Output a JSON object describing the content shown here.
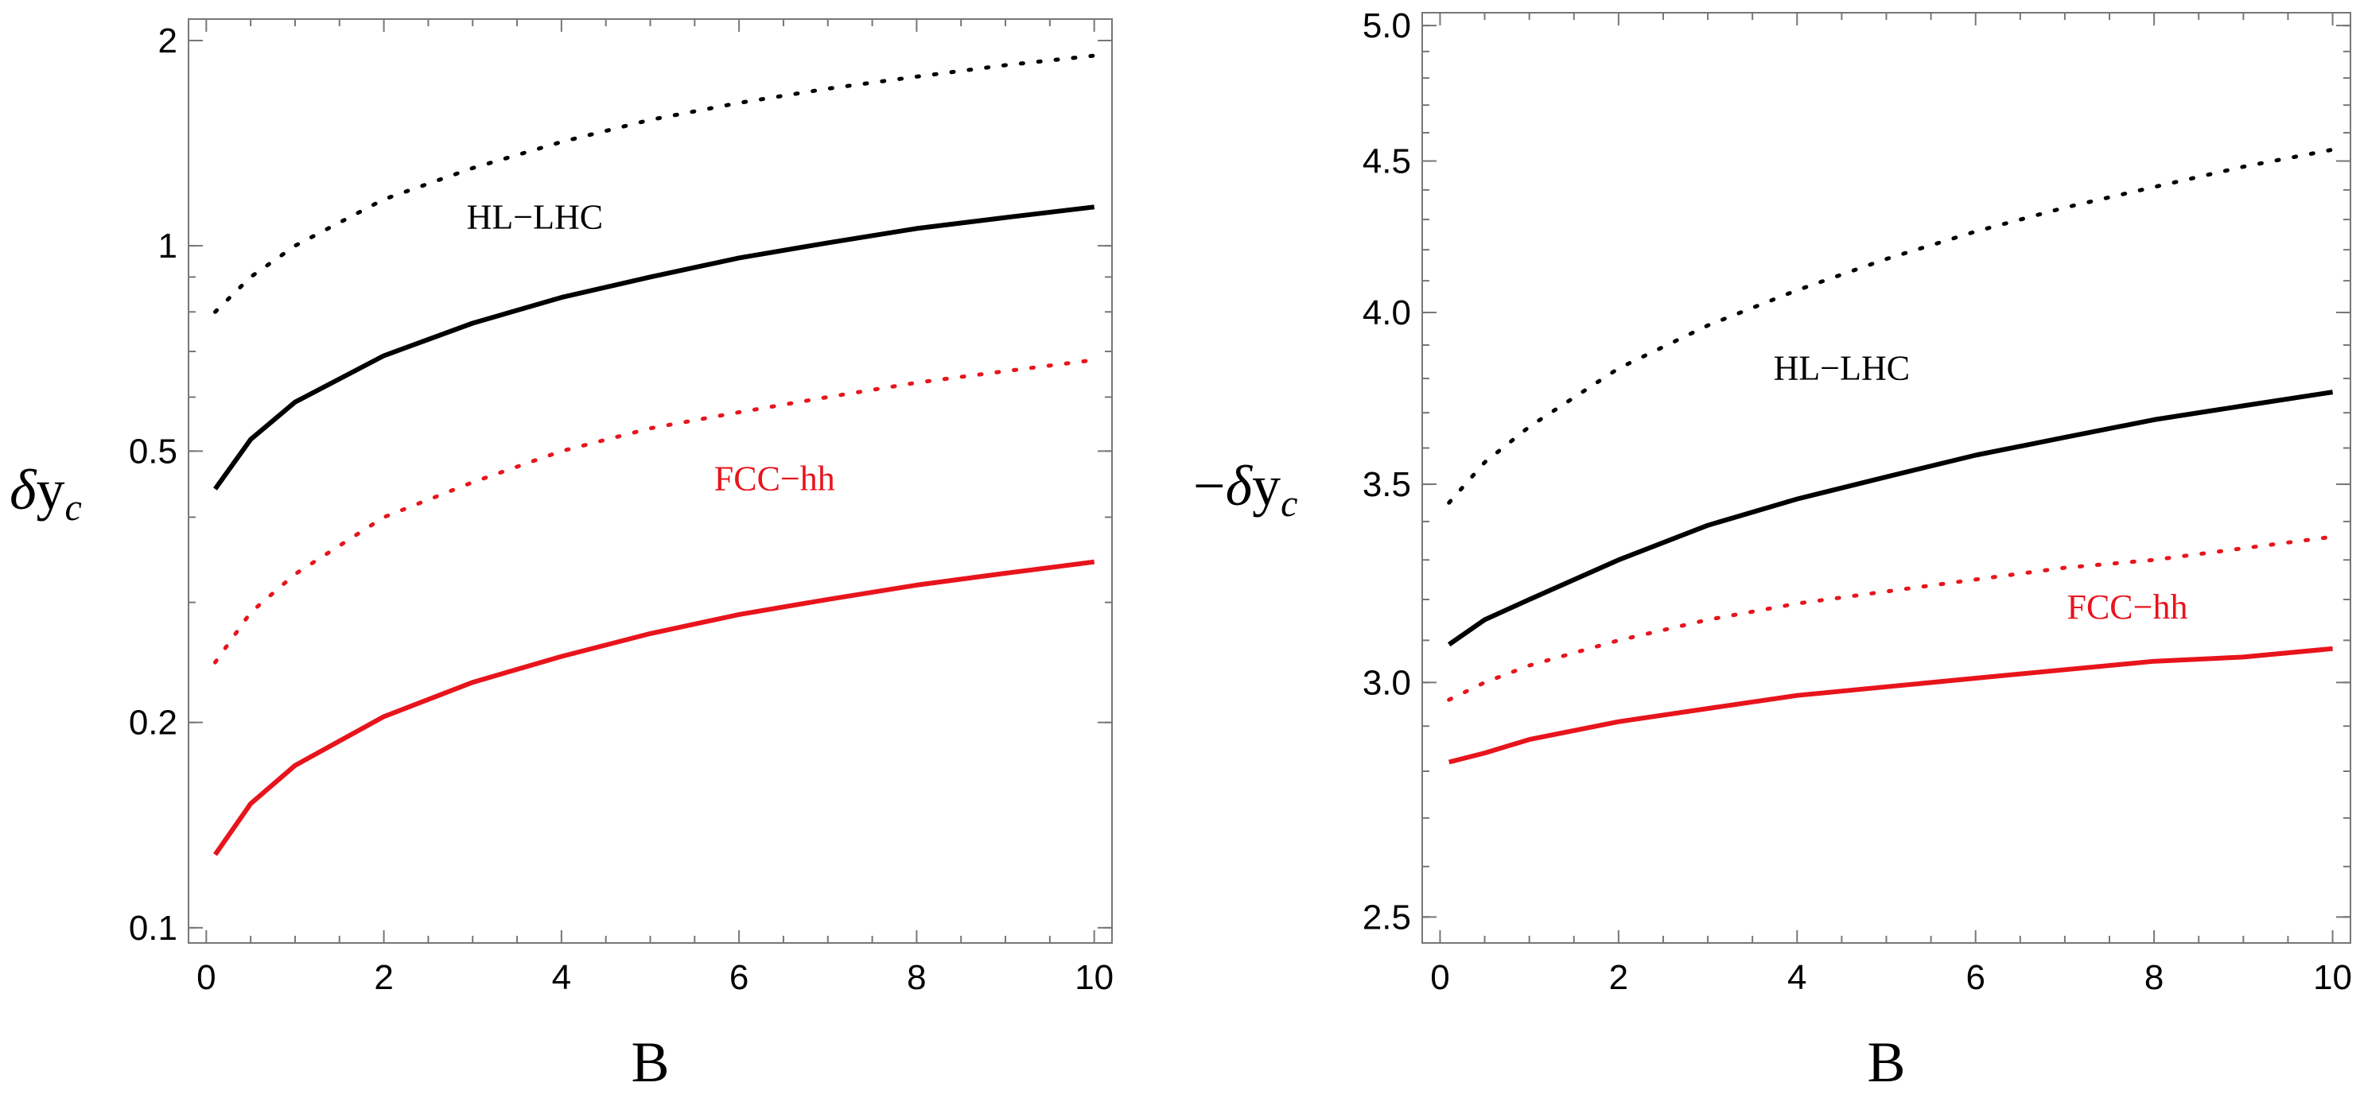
{
  "chart_data": [
    {
      "type": "line",
      "yscale": "log",
      "xlabel": "B",
      "ylabel_prefix": "",
      "ylabel_symbol": "δ",
      "ylabel_var": "y",
      "ylabel_sub": "c",
      "xlim": [
        -0.2,
        10.2
      ],
      "ylim": [
        0.095,
        2.15
      ],
      "xticks": [
        0,
        2,
        4,
        6,
        8,
        10
      ],
      "xtick_labels": [
        "0",
        "2",
        "4",
        "6",
        "8",
        "10"
      ],
      "yticks": [
        0.1,
        0.2,
        0.5,
        1,
        2
      ],
      "ytick_labels": [
        "0.1",
        "0.2",
        "0.5",
        "1",
        "2"
      ],
      "annotations": [
        {
          "text": "HL−LHC",
          "x": 3.7,
          "y": 1.1,
          "color": "#000000"
        },
        {
          "text": "FCC−hh",
          "x": 6.4,
          "y": 0.455,
          "color": "#e8141c"
        }
      ],
      "series": [
        {
          "name": "HL-LHC dotted",
          "color": "#000000",
          "style": "dotted",
          "x": [
            0.1,
            0.5,
            1,
            2,
            3,
            4,
            5,
            6,
            7,
            8,
            9,
            10
          ],
          "y": [
            0.8,
            0.9,
            1.0,
            1.17,
            1.3,
            1.42,
            1.53,
            1.62,
            1.7,
            1.77,
            1.84,
            1.9
          ]
        },
        {
          "name": "HL-LHC solid",
          "color": "#000000",
          "style": "solid",
          "x": [
            0.1,
            0.5,
            1,
            2,
            3,
            4,
            5,
            6,
            7,
            8,
            9,
            10
          ],
          "y": [
            0.44,
            0.52,
            0.59,
            0.69,
            0.77,
            0.84,
            0.9,
            0.96,
            1.01,
            1.06,
            1.1,
            1.14
          ]
        },
        {
          "name": "FCC-hh dotted",
          "color": "#e8141c",
          "style": "dotted",
          "x": [
            0.1,
            0.5,
            1,
            2,
            3,
            4,
            5,
            6,
            7,
            8,
            9,
            10
          ],
          "y": [
            0.245,
            0.29,
            0.33,
            0.4,
            0.45,
            0.5,
            0.54,
            0.57,
            0.6,
            0.63,
            0.655,
            0.68
          ]
        },
        {
          "name": "FCC-hh solid",
          "color": "#e8141c",
          "style": "solid",
          "x": [
            0.1,
            0.5,
            1,
            2,
            3,
            4,
            5,
            6,
            7,
            8,
            9,
            10
          ],
          "y": [
            0.128,
            0.152,
            0.173,
            0.204,
            0.229,
            0.25,
            0.27,
            0.288,
            0.303,
            0.318,
            0.331,
            0.344
          ]
        }
      ]
    },
    {
      "type": "line",
      "yscale": "log",
      "xlabel": "B",
      "ylabel_prefix": "−",
      "ylabel_symbol": "δ",
      "ylabel_var": "y",
      "ylabel_sub": "c",
      "xlim": [
        -0.2,
        10.2
      ],
      "ylim": [
        2.45,
        5.05
      ],
      "xticks": [
        0,
        2,
        4,
        6,
        8,
        10
      ],
      "xtick_labels": [
        "0",
        "2",
        "4",
        "6",
        "8",
        "10"
      ],
      "yticks": [
        2.5,
        3.0,
        3.5,
        4.0,
        4.5,
        5.0
      ],
      "ytick_labels": [
        "2.5",
        "3.0",
        "3.5",
        "4.0",
        "4.5",
        "5.0"
      ],
      "annotations": [
        {
          "text": "HL−LHC",
          "x": 4.5,
          "y": 3.83,
          "color": "#000000"
        },
        {
          "text": "FCC−hh",
          "x": 7.7,
          "y": 3.18,
          "color": "#e8141c"
        }
      ],
      "series": [
        {
          "name": "HL-LHC dotted",
          "color": "#000000",
          "style": "dotted",
          "x": [
            0.1,
            0.5,
            1,
            2,
            3,
            4,
            5,
            6,
            7,
            8,
            9,
            10
          ],
          "y": [
            3.45,
            3.56,
            3.66,
            3.83,
            3.96,
            4.07,
            4.17,
            4.26,
            4.34,
            4.41,
            4.48,
            4.54
          ]
        },
        {
          "name": "HL-LHC solid",
          "color": "#000000",
          "style": "solid",
          "x": [
            0.1,
            0.5,
            1,
            2,
            3,
            4,
            5,
            6,
            7,
            8,
            9,
            10
          ],
          "y": [
            3.09,
            3.15,
            3.2,
            3.3,
            3.39,
            3.46,
            3.52,
            3.58,
            3.63,
            3.68,
            3.72,
            3.76
          ]
        },
        {
          "name": "FCC-hh dotted",
          "color": "#e8141c",
          "style": "dotted",
          "x": [
            0.1,
            0.5,
            1,
            2,
            3,
            4,
            5,
            6,
            7,
            8,
            9,
            10
          ],
          "y": [
            2.96,
            3.0,
            3.04,
            3.1,
            3.15,
            3.19,
            3.22,
            3.25,
            3.28,
            3.3,
            3.33,
            3.36
          ]
        },
        {
          "name": "FCC-hh solid",
          "color": "#e8141c",
          "style": "solid",
          "x": [
            0.1,
            0.5,
            1,
            2,
            3,
            4,
            5,
            6,
            7,
            8,
            9,
            10
          ],
          "y": [
            2.82,
            2.84,
            2.87,
            2.91,
            2.94,
            2.97,
            2.99,
            3.01,
            3.03,
            3.05,
            3.06,
            3.08
          ]
        }
      ]
    }
  ]
}
